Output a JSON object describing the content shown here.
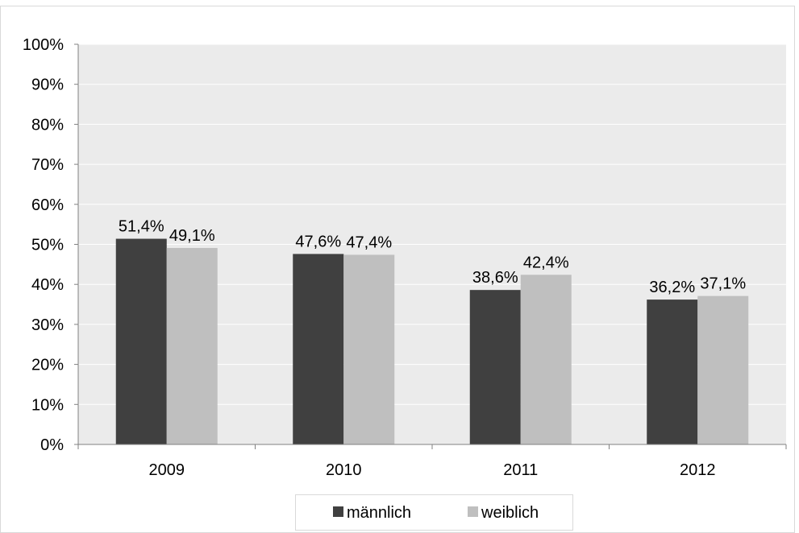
{
  "chart_data": {
    "type": "bar",
    "title": "",
    "xlabel": "",
    "ylabel": "",
    "categories": [
      "2009",
      "2010",
      "2011",
      "2012"
    ],
    "series": [
      {
        "name": "männlich",
        "values": [
          51.4,
          47.6,
          38.6,
          36.2
        ],
        "labels": [
          "51,4%",
          "47,6%",
          "38,6%",
          "36,2%"
        ],
        "color": "#404040"
      },
      {
        "name": "weiblich",
        "values": [
          49.1,
          47.4,
          42.4,
          37.1
        ],
        "labels": [
          "49,1%",
          "47,4%",
          "42,4%",
          "37,1%"
        ],
        "color": "#bfbfbf"
      }
    ],
    "ylim": [
      0,
      100
    ],
    "yticks": [
      "0%",
      "10%",
      "20%",
      "30%",
      "40%",
      "50%",
      "60%",
      "70%",
      "80%",
      "90%",
      "100%"
    ],
    "grid": true,
    "plot_background": "#ebebeb",
    "legend_position": "bottom"
  }
}
